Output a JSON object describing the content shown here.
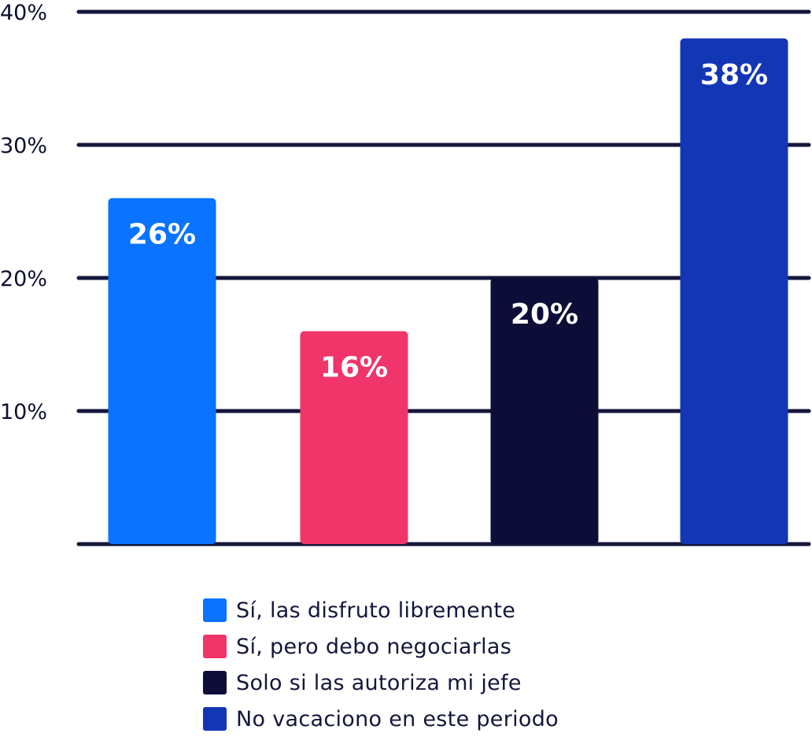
{
  "chart_data": {
    "type": "bar",
    "categories": [
      "Sí, las disfruto libremente",
      "Sí, pero debo negociarlas",
      "Solo si las autoriza mi jefe",
      "No vacaciono en este periodo"
    ],
    "values": [
      26,
      16,
      20,
      38
    ],
    "data_labels": [
      "26%",
      "16%",
      "20%",
      "38%"
    ],
    "colors": [
      "#0a73ff",
      "#f0356a",
      "#0d0e38",
      "#1336b5"
    ],
    "yticks": [
      10,
      20,
      30,
      40
    ],
    "ytick_labels": [
      "10%",
      "20%",
      "30%",
      "40%"
    ],
    "ylim": [
      0,
      40
    ],
    "grid": true,
    "legend_position": "bottom"
  }
}
